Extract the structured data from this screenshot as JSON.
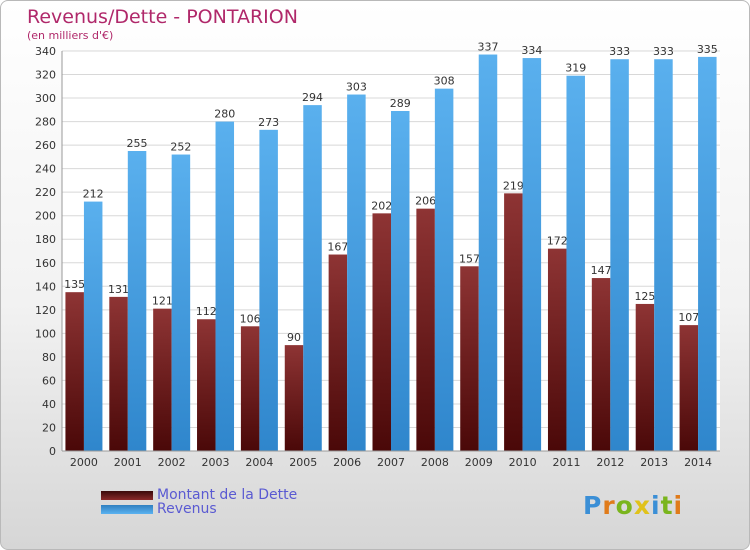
{
  "chart_data": {
    "type": "bar",
    "title": "Revenus/Dette - PONTARION",
    "subtitle": "(en milliers d'€)",
    "categories": [
      "2000",
      "2001",
      "2002",
      "2003",
      "2004",
      "2005",
      "2006",
      "2007",
      "2008",
      "2009",
      "2010",
      "2011",
      "2012",
      "2013",
      "2014"
    ],
    "series": [
      {
        "name": "Montant de la Dette",
        "color": "#7a1a1a",
        "values": [
          135,
          131,
          121,
          112,
          106,
          90,
          167,
          202,
          206,
          157,
          219,
          172,
          147,
          125,
          107
        ]
      },
      {
        "name": "Revenus",
        "color": "#4aa3e6",
        "values": [
          212,
          255,
          252,
          280,
          273,
          294,
          303,
          289,
          308,
          337,
          334,
          319,
          333,
          333,
          335
        ]
      }
    ],
    "ylim": [
      0,
      340
    ],
    "ytick_step": 20,
    "grid": true,
    "legend_position": "bottom-left"
  },
  "brand": {
    "logo_text": "Proxiti"
  }
}
